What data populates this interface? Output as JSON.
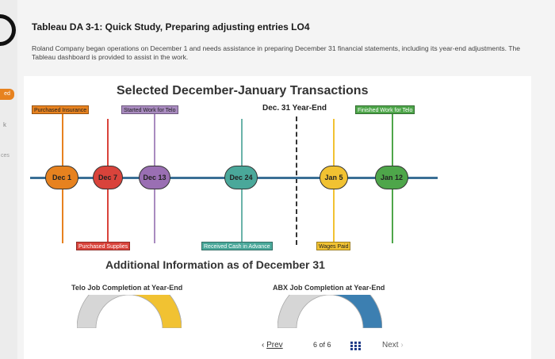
{
  "header": {
    "title": "Tableau DA 3-1: Quick Study, Preparing adjusting entries LO4",
    "intro": "Roland Company began operations on December 1 and needs assistance in preparing December 31 financial statements, including its year-end adjustments. The Tableau dashboard is provided to assist in the work."
  },
  "side": {
    "tab": "ed",
    "k": "k",
    "ces": "ces"
  },
  "timeline_chart": {
    "title": "Selected December-January Transactions",
    "year_end_label": "Dec. 31 Year-End",
    "events": [
      {
        "date": "Dec 1",
        "label": "Purchased Insurance",
        "color": "#e7821f",
        "line_color": "#e7821f"
      },
      {
        "date": "Dec 7",
        "label": "Purchased Supplies",
        "color": "#d9433b",
        "line_color": "#d9433b"
      },
      {
        "date": "Dec 13",
        "label": "Started Work for Telo",
        "color": "#9a6fb3",
        "line_color": "#a98bc0"
      },
      {
        "date": "Dec 24",
        "label": "Received Cash in Advance",
        "color": "#4aa89a",
        "line_color": "#6ab3a9"
      },
      {
        "date": "Jan 5",
        "label": "Wages Paid",
        "color": "#f1c232",
        "line_color": "#f1c232"
      },
      {
        "date": "Jan 12",
        "label": "Finished Work for Telo",
        "color": "#4ea64a",
        "line_color": "#4ea64a"
      }
    ],
    "timeline_color": "#3a6f95"
  },
  "additional": {
    "title": "Additional Information as of December 31",
    "gauges": [
      {
        "title": "Telo Job Completion at Year-End",
        "fill_fraction": 0.5,
        "fill_color": "#f1c232",
        "base_color": "#d6d6d6"
      },
      {
        "title": "ABX Job Completion at Year-End",
        "fill_fraction": 0.5,
        "fill_color": "#3c7fb1",
        "base_color": "#d6d6d6"
      }
    ]
  },
  "navigation": {
    "prev": "Prev",
    "page": "6 of 6",
    "next": "Next",
    "prev_icon": "chevron-left-icon",
    "next_icon": "chevron-right-icon",
    "grid_icon": "grid-icon"
  }
}
